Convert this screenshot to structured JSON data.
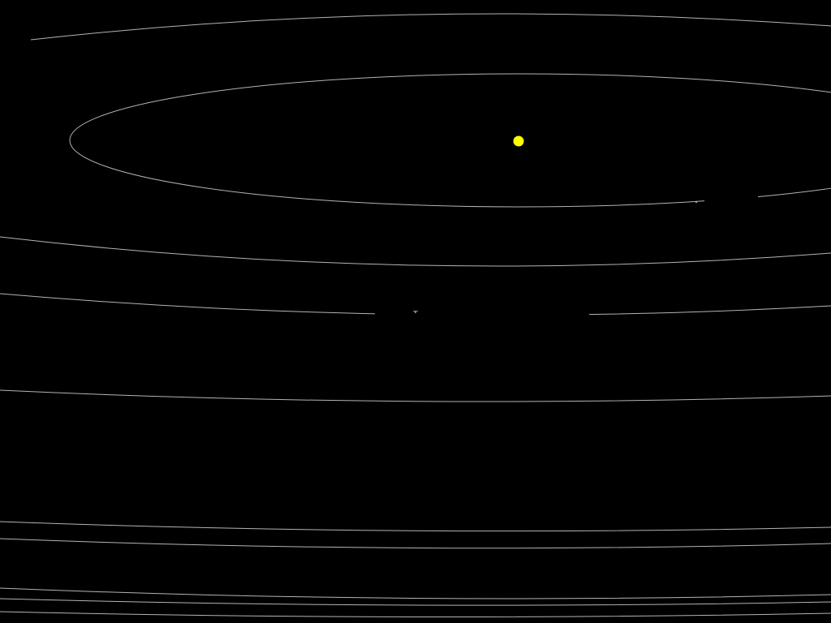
{
  "scene": {
    "background": "#000000",
    "orbit_color": "#b4b4b4",
    "sun": {
      "color": "#ffff00",
      "label": ""
    },
    "planets": [
      {
        "name": "planet-inner",
        "color": "#aaaaaa"
      },
      {
        "name": "planet-middle",
        "color": "#8a8a8a"
      }
    ],
    "orbits": [
      "orbit-1",
      "orbit-2",
      "orbit-3",
      "orbit-4",
      "orbit-5",
      "orbit-6",
      "orbit-7",
      "orbit-8",
      "orbit-9",
      "orbit-10"
    ]
  }
}
